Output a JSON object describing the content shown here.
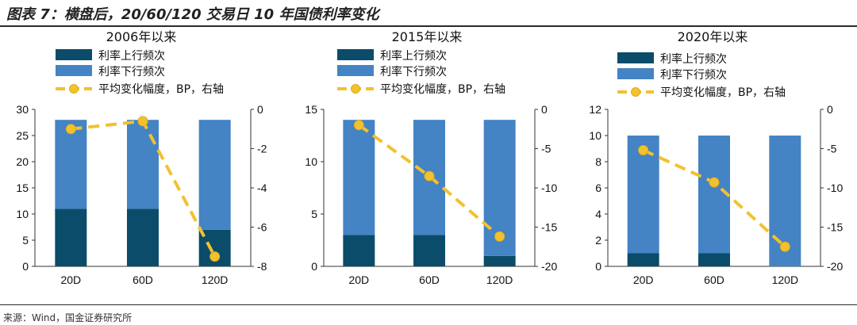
{
  "figure": {
    "title": "图表 7：横盘后，20/60/120 交易日 10 年国债利率变化",
    "source": "来源：Wind，国金证券研究所"
  },
  "colors": {
    "rate_up": "#0b4c6a",
    "rate_down": "#4483c4",
    "avg_change": "#f2c12e"
  },
  "chart_data": [
    {
      "type": "bar",
      "title": "2006年以来",
      "categories": [
        "20D",
        "60D",
        "120D"
      ],
      "series": [
        {
          "name": "利率上行频次",
          "values": [
            11,
            11,
            7
          ]
        },
        {
          "name": "利率下行频次",
          "values": [
            17,
            17,
            21
          ]
        },
        {
          "name": "平均变化幅度，BP，右轴",
          "type": "line",
          "axis": "right",
          "values": [
            -1.0,
            -0.6,
            -7.5
          ]
        }
      ],
      "ylim": [
        0,
        30
      ],
      "yticks": [
        0,
        5,
        10,
        15,
        20,
        25,
        30
      ],
      "y2lim": [
        -8,
        0
      ],
      "y2ticks": [
        0,
        -2,
        -4,
        -6,
        -8
      ],
      "stacked": true,
      "legend_position": "top",
      "grid": false
    },
    {
      "type": "bar",
      "title": "2015年以来",
      "categories": [
        "20D",
        "60D",
        "120D"
      ],
      "series": [
        {
          "name": "利率上行频次",
          "values": [
            3,
            3,
            1
          ]
        },
        {
          "name": "利率下行频次",
          "values": [
            11,
            11,
            13
          ]
        },
        {
          "name": "平均变化幅度，BP，右轴",
          "type": "line",
          "axis": "right",
          "values": [
            -2.0,
            -8.5,
            -16.2
          ]
        }
      ],
      "ylim": [
        0,
        15
      ],
      "yticks": [
        0,
        5,
        10,
        15
      ],
      "y2lim": [
        -20,
        0
      ],
      "y2ticks": [
        0,
        -5,
        -10,
        -15,
        -20
      ],
      "stacked": true,
      "legend_position": "top",
      "grid": false
    },
    {
      "type": "bar",
      "title": "2020年以来",
      "categories": [
        "20D",
        "60D",
        "120D"
      ],
      "series": [
        {
          "name": "利率上行频次",
          "values": [
            1,
            1,
            0
          ]
        },
        {
          "name": "利率下行频次",
          "values": [
            9,
            9,
            10
          ]
        },
        {
          "name": "平均变化幅度，BP，右轴",
          "type": "line",
          "axis": "right",
          "values": [
            -5.2,
            -9.3,
            -17.5
          ]
        }
      ],
      "ylim": [
        0,
        12
      ],
      "yticks": [
        0,
        2,
        4,
        6,
        8,
        10,
        12
      ],
      "y2lim": [
        -20,
        0
      ],
      "y2ticks": [
        0,
        -5,
        -10,
        -15,
        -20
      ],
      "stacked": true,
      "legend_position": "top",
      "grid": false
    }
  ]
}
